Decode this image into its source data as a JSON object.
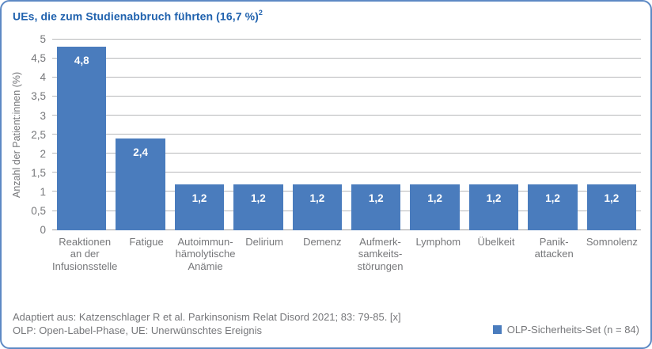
{
  "title": "UEs, die zum Studienabbruch führten (16,7 %)",
  "title_sup": "2",
  "chart_data": {
    "type": "bar",
    "title": "UEs, die zum Studienabbruch führten (16,7 %)²",
    "categories": [
      "Reaktionen an der Infusionsstelle",
      "Fatigue",
      "Autoimmun-hämolytische Anämie",
      "Delirium",
      "Demenz",
      "Aufmerksamkeitsstörungen",
      "Lymphom",
      "Übelkeit",
      "Panikattacken",
      "Somnolenz"
    ],
    "category_lines": [
      [
        "Reaktionen",
        "an der",
        "Infusionsstelle"
      ],
      [
        "Fatigue"
      ],
      [
        "Autoimmun-",
        "hämolytische",
        "Anämie"
      ],
      [
        "Delirium"
      ],
      [
        "Demenz"
      ],
      [
        "Aufmerk-",
        "samkeits-",
        "störungen"
      ],
      [
        "Lymphom"
      ],
      [
        "Übelkeit"
      ],
      [
        "Panik-",
        "attacken"
      ],
      [
        "Somnolenz"
      ]
    ],
    "values": [
      4.8,
      2.4,
      1.2,
      1.2,
      1.2,
      1.2,
      1.2,
      1.2,
      1.2,
      1.2
    ],
    "value_labels": [
      "4,8",
      "2,4",
      "1,2",
      "1,2",
      "1,2",
      "1,2",
      "1,2",
      "1,2",
      "1,2",
      "1,2"
    ],
    "xlabel": "",
    "ylabel": "Anzahl der Patient:innen (%)",
    "ylim": [
      0,
      5
    ],
    "yticks": [
      0,
      0.5,
      1,
      1.5,
      2,
      2.5,
      3,
      3.5,
      4,
      4.5,
      5
    ],
    "ytick_labels": [
      "0",
      "0,5",
      "1",
      "1,5",
      "2",
      "2,5",
      "3",
      "3,5",
      "4",
      "4,5",
      "5"
    ],
    "grid": true,
    "bar_color": "#4a7cbd",
    "legend": {
      "label": "OLP-Sicherheits-Set (n = 84)",
      "position": "bottom-right",
      "color": "#4a7cbd"
    }
  },
  "footer": {
    "line1": "Adaptiert aus: Katzenschlager R et al. Parkinsonism Relat Disord 2021; 83: 79-85. [x]",
    "line2": "OLP: Open-Label-Phase, UE: Unerwünschtes Ereignis"
  },
  "colors": {
    "border": "#5d89c4",
    "title": "#2062ae",
    "bar": "#4a7cbd",
    "grid": "#b7b8ba",
    "text_gray": "#76777a"
  }
}
